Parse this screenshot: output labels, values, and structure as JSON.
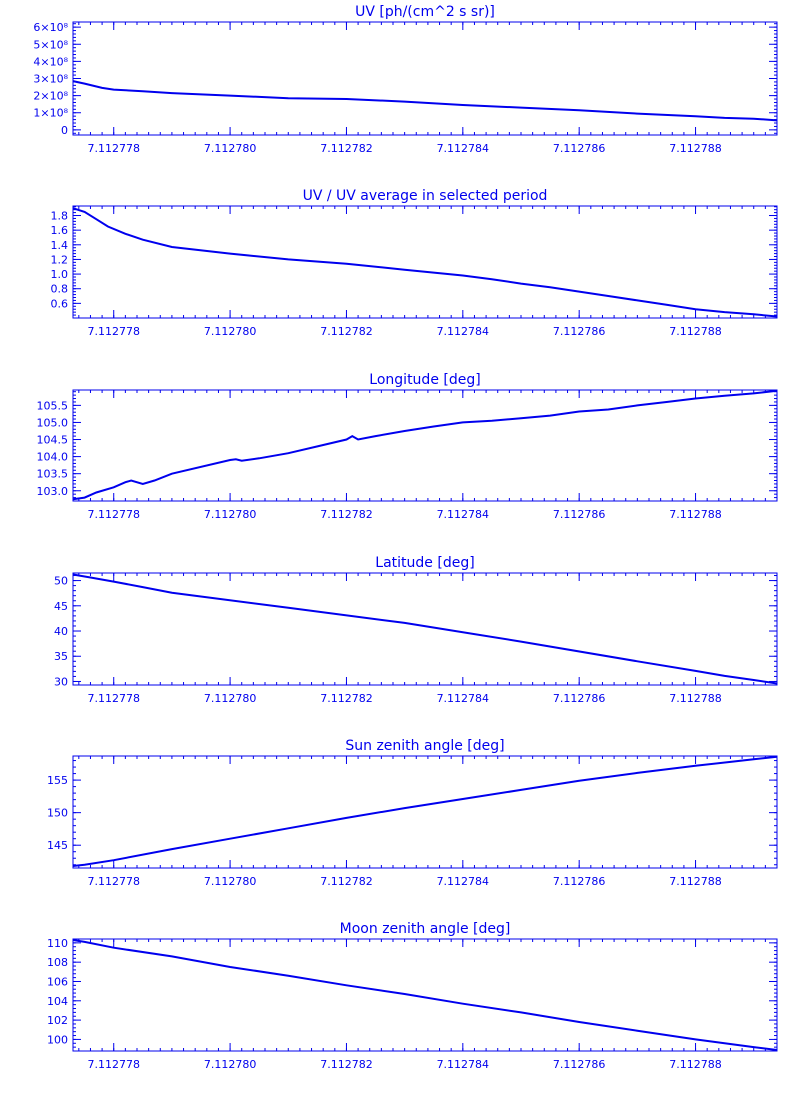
{
  "page": {
    "background": "#ffffff",
    "ink_color": "#0000ee"
  },
  "chart_data": [
    {
      "type": "line",
      "title": "UV [ph/(cm^2 s sr)]",
      "xlim": [
        7.1127773,
        7.1127894
      ],
      "ylim": [
        -0.3,
        6.3
      ],
      "x_ticks": [
        7.112778,
        7.11278,
        7.112782,
        7.112784,
        7.112786,
        7.112788
      ],
      "x_tick_labels": [
        "7.112778",
        "7.112780",
        "7.112782",
        "7.112784",
        "7.112786",
        "7.112788"
      ],
      "y_ticks": [
        0,
        1,
        2,
        3,
        4,
        5,
        6
      ],
      "y_tick_labels": [
        "0",
        "1×10⁸",
        "2×10⁸",
        "3×10⁸",
        "4×10⁸",
        "5×10⁸",
        "6×10⁸"
      ],
      "y_unit_scale": "10⁸",
      "x": [
        7.1127773,
        7.1127775,
        7.1127778,
        7.112778,
        7.1127785,
        7.112779,
        7.11278,
        7.112781,
        7.112782,
        7.112783,
        7.112784,
        7.112785,
        7.112786,
        7.112787,
        7.112788,
        7.1127885,
        7.112789,
        7.1127894
      ],
      "y": [
        2.85,
        2.7,
        2.45,
        2.35,
        2.25,
        2.15,
        2.0,
        1.85,
        1.8,
        1.65,
        1.45,
        1.3,
        1.15,
        0.95,
        0.8,
        0.7,
        0.65,
        0.55
      ]
    },
    {
      "type": "line",
      "title": "UV / UV average in selected period",
      "xlim": [
        7.1127773,
        7.1127894
      ],
      "ylim": [
        0.4,
        1.93
      ],
      "x_ticks": [
        7.112778,
        7.11278,
        7.112782,
        7.112784,
        7.112786,
        7.112788
      ],
      "x_tick_labels": [
        "7.112778",
        "7.112780",
        "7.112782",
        "7.112784",
        "7.112786",
        "7.112788"
      ],
      "y_ticks": [
        0.6,
        0.8,
        1.0,
        1.2,
        1.4,
        1.6,
        1.8
      ],
      "y_tick_labels": [
        "0.6",
        "0.8",
        "1.0",
        "1.2",
        "1.4",
        "1.6",
        "1.8"
      ],
      "x": [
        7.1127773,
        7.1127775,
        7.1127777,
        7.1127779,
        7.1127782,
        7.1127785,
        7.112779,
        7.11278,
        7.112781,
        7.112782,
        7.112783,
        7.112784,
        7.1127845,
        7.112785,
        7.1127855,
        7.112786,
        7.1127865,
        7.112787,
        7.1127875,
        7.112788,
        7.1127885,
        7.112789,
        7.1127894
      ],
      "y": [
        1.9,
        1.85,
        1.75,
        1.65,
        1.55,
        1.47,
        1.37,
        1.28,
        1.2,
        1.14,
        1.06,
        0.98,
        0.93,
        0.87,
        0.82,
        0.76,
        0.7,
        0.64,
        0.58,
        0.52,
        0.48,
        0.45,
        0.42
      ]
    },
    {
      "type": "line",
      "title": "Longitude [deg]",
      "xlim": [
        7.1127773,
        7.1127894
      ],
      "ylim": [
        102.7,
        105.95
      ],
      "x_ticks": [
        7.112778,
        7.11278,
        7.112782,
        7.112784,
        7.112786,
        7.112788
      ],
      "x_tick_labels": [
        "7.112778",
        "7.112780",
        "7.112782",
        "7.112784",
        "7.112786",
        "7.112788"
      ],
      "y_ticks": [
        103.0,
        103.5,
        104.0,
        104.5,
        105.0,
        105.5
      ],
      "y_tick_labels": [
        "103.0",
        "103.5",
        "104.0",
        "104.5",
        "105.0",
        "105.5"
      ],
      "x": [
        7.1127773,
        7.1127775,
        7.1127777,
        7.112778,
        7.1127782,
        7.1127783,
        7.1127785,
        7.1127787,
        7.112779,
        7.11278,
        7.1127801,
        7.1127802,
        7.1127805,
        7.112781,
        7.1127815,
        7.112782,
        7.1127821,
        7.1127822,
        7.1127825,
        7.112783,
        7.1127835,
        7.112784,
        7.1127845,
        7.112785,
        7.1127855,
        7.112786,
        7.1127865,
        7.112787,
        7.1127875,
        7.112788,
        7.1127885,
        7.112789,
        7.1127894
      ],
      "y": [
        102.75,
        102.8,
        102.95,
        103.1,
        103.25,
        103.3,
        103.2,
        103.3,
        103.5,
        103.9,
        103.92,
        103.88,
        103.95,
        104.1,
        104.3,
        104.5,
        104.6,
        104.5,
        104.6,
        104.75,
        104.88,
        105.0,
        105.05,
        105.12,
        105.2,
        105.32,
        105.38,
        105.5,
        105.6,
        105.7,
        105.78,
        105.85,
        105.93
      ]
    },
    {
      "type": "line",
      "title": "Latitude [deg]",
      "xlim": [
        7.1127773,
        7.1127894
      ],
      "ylim": [
        29.3,
        51.5
      ],
      "x_ticks": [
        7.112778,
        7.11278,
        7.112782,
        7.112784,
        7.112786,
        7.112788
      ],
      "x_tick_labels": [
        "7.112778",
        "7.112780",
        "7.112782",
        "7.112784",
        "7.112786",
        "7.112788"
      ],
      "y_ticks": [
        30,
        35,
        40,
        45,
        50
      ],
      "y_tick_labels": [
        "30",
        "35",
        "40",
        "45",
        "50"
      ],
      "x": [
        7.1127773,
        7.1127776,
        7.112778,
        7.1127785,
        7.112779,
        7.112781,
        7.112783,
        7.112785,
        7.112787,
        7.112788,
        7.1127885,
        7.112789,
        7.1127894
      ],
      "y": [
        51.2,
        50.6,
        49.8,
        48.7,
        47.6,
        44.6,
        41.6,
        37.9,
        34.0,
        32.1,
        31.1,
        30.3,
        29.6
      ]
    },
    {
      "type": "line",
      "title": "Sun zenith angle [deg]",
      "xlim": [
        7.1127773,
        7.1127894
      ],
      "ylim": [
        141.5,
        158.7
      ],
      "x_ticks": [
        7.112778,
        7.11278,
        7.112782,
        7.112784,
        7.112786,
        7.112788
      ],
      "x_tick_labels": [
        "7.112778",
        "7.112780",
        "7.112782",
        "7.112784",
        "7.112786",
        "7.112788"
      ],
      "y_ticks": [
        145,
        150,
        155
      ],
      "y_tick_labels": [
        "145",
        "150",
        "155"
      ],
      "x": [
        7.1127773,
        7.1127775,
        7.112778,
        7.112779,
        7.11278,
        7.112781,
        7.112782,
        7.112783,
        7.112784,
        7.112785,
        7.112786,
        7.112787,
        7.112788,
        7.112789,
        7.1127894
      ],
      "y": [
        141.8,
        142.0,
        142.7,
        144.4,
        146.0,
        147.6,
        149.2,
        150.7,
        152.1,
        153.5,
        154.9,
        156.1,
        157.2,
        158.2,
        158.6
      ]
    },
    {
      "type": "line",
      "title": "Moon zenith angle [deg]",
      "xlim": [
        7.1127773,
        7.1127894
      ],
      "ylim": [
        98.8,
        110.4
      ],
      "x_ticks": [
        7.112778,
        7.11278,
        7.112782,
        7.112784,
        7.112786,
        7.112788
      ],
      "x_tick_labels": [
        "7.112778",
        "7.112780",
        "7.112782",
        "7.112784",
        "7.112786",
        "7.112788"
      ],
      "y_ticks": [
        100,
        102,
        104,
        106,
        108,
        110
      ],
      "y_tick_labels": [
        "100",
        "102",
        "104",
        "106",
        "108",
        "110"
      ],
      "x": [
        7.1127773,
        7.1127775,
        7.112778,
        7.112779,
        7.11278,
        7.112781,
        7.112782,
        7.112783,
        7.112784,
        7.112785,
        7.112786,
        7.112787,
        7.112788,
        7.112789,
        7.1127894
      ],
      "y": [
        110.3,
        110.1,
        109.5,
        108.6,
        107.5,
        106.6,
        105.6,
        104.7,
        103.7,
        102.8,
        101.8,
        100.9,
        100.0,
        99.2,
        98.9
      ]
    }
  ]
}
